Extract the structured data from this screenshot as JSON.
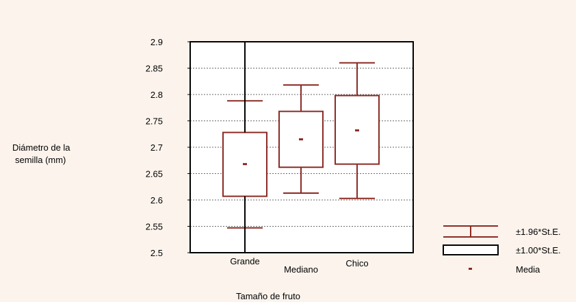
{
  "chart_data": {
    "type": "box",
    "title": "",
    "xlabel": "Tamaño de fruto",
    "ylabel_lines": [
      "Diámetro de la",
      "semilla (mm)"
    ],
    "ylim": [
      2.5,
      2.9
    ],
    "yticks": [
      2.5,
      2.55,
      2.6,
      2.65,
      2.7,
      2.75,
      2.8,
      2.85,
      2.9
    ],
    "ytick_labels": [
      "2.5",
      "2.55",
      "2.6",
      "2.65",
      "2.7",
      "2.75",
      "2.8",
      "2.85",
      "2.9"
    ],
    "categories": [
      "Grande",
      "Mediano",
      "Chico"
    ],
    "groups": [
      {
        "category": "Grande",
        "mean": 2.668,
        "se_low": 2.607,
        "se_high": 2.728,
        "ci_low": 2.547,
        "ci_high": 2.788
      },
      {
        "category": "Mediano",
        "mean": 2.715,
        "se_low": 2.662,
        "se_high": 2.768,
        "ci_low": 2.613,
        "ci_high": 2.818
      },
      {
        "category": "Chico",
        "mean": 2.732,
        "se_low": 2.668,
        "se_high": 2.798,
        "ci_low": 2.603,
        "ci_high": 2.86
      }
    ],
    "legend": {
      "placement": "bottom-right",
      "items": [
        {
          "symbol": "whisker",
          "label": "±1.96*St.E."
        },
        {
          "symbol": "box",
          "label": "±1.00*St.E."
        },
        {
          "symbol": "mean",
          "label": "Media"
        }
      ]
    },
    "colors": {
      "series": "#8b2a23",
      "frame": "#000000",
      "grid": "#6a6a6a",
      "background": "#fbf3ec",
      "plot": "#ffffff"
    },
    "grid": true
  }
}
